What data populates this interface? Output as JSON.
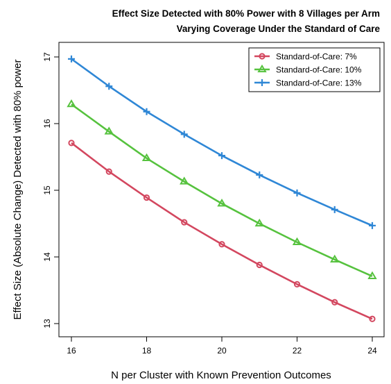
{
  "chart_data": {
    "type": "line",
    "title_line1": "Effect Size Detected with 80% Power with 8 Villages per Arm",
    "title_line2": "Varying Coverage Under the Standard of Care",
    "xlabel": "N per Cluster with Known Prevention Outcomes",
    "ylabel": "Effect Size (Absolute Change) Detected with 80% power",
    "xlim": [
      16,
      24
    ],
    "ylim": [
      13,
      17
    ],
    "x_ticks": [
      "16",
      "18",
      "20",
      "22",
      "24"
    ],
    "y_ticks": [
      "13",
      "14",
      "15",
      "16",
      "17"
    ],
    "x": [
      16,
      17,
      18,
      19,
      20,
      21,
      22,
      23,
      24
    ],
    "series": [
      {
        "name": "Standard-of-Care: 7%",
        "color": "#d3475f",
        "marker": "circle",
        "values": [
          15.71,
          15.28,
          14.89,
          14.52,
          14.19,
          13.88,
          13.59,
          13.32,
          13.07
        ]
      },
      {
        "name": "Standard-of-Care: 10%",
        "color": "#56c23e",
        "marker": "triangle",
        "values": [
          16.29,
          15.88,
          15.48,
          15.13,
          14.8,
          14.5,
          14.22,
          13.96,
          13.71
        ]
      },
      {
        "name": "Standard-of-Care: 13%",
        "color": "#2f87d6",
        "marker": "plus",
        "values": [
          16.97,
          16.56,
          16.18,
          15.84,
          15.52,
          15.23,
          14.96,
          14.71,
          14.47
        ]
      }
    ],
    "legend_position": "top-right",
    "grid": false
  }
}
